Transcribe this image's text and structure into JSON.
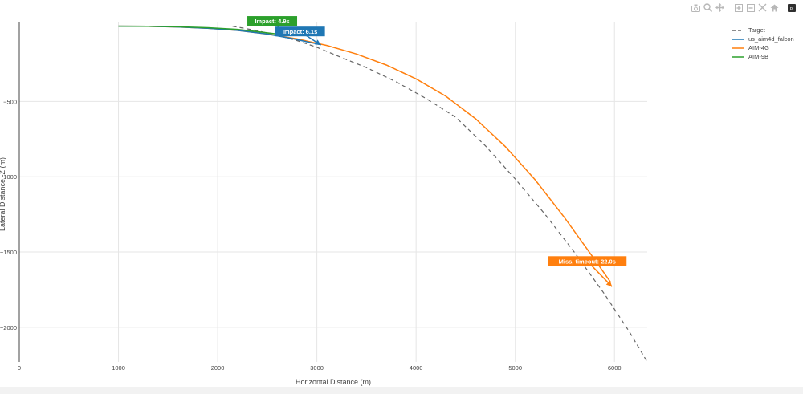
{
  "modebar": {
    "icons": [
      "camera-icon",
      "zoom-icon",
      "pan-icon",
      "zoom-in-icon",
      "zoom-out-icon",
      "autoscale-icon",
      "home-icon",
      "plotly-logo-icon"
    ],
    "logo_text": "pl"
  },
  "chart_data": {
    "type": "line",
    "xlabel": "Horizontal Distance (m)",
    "ylabel": "Lateral Distance -Z (m)",
    "xlim": [
      0,
      6330
    ],
    "ylim": [
      -2230,
      30
    ],
    "x_ticks": [
      0,
      1000,
      2000,
      3000,
      4000,
      5000,
      6000
    ],
    "x_tick_labels": [
      "0",
      "1000",
      "2000",
      "3000",
      "4000",
      "5000",
      "6000"
    ],
    "y_ticks": [
      -500,
      -1000,
      -1500,
      -2000
    ],
    "y_tick_labels": [
      "−500",
      "−1000",
      "−1500",
      "−2000"
    ],
    "grid": true,
    "legend_position": "top-right",
    "series": [
      {
        "name": "Target",
        "color": "#666666",
        "dash": "dash",
        "x": [
          2150,
          2400,
          2600,
          2800,
          3000,
          3200,
          3500,
          3800,
          4100,
          4400,
          4700,
          5000,
          5300,
          5600,
          5900,
          6150,
          6330
        ],
        "y": [
          0,
          -30,
          -60,
          -95,
          -140,
          -195,
          -275,
          -370,
          -480,
          -605,
          -795,
          -1015,
          -1250,
          -1505,
          -1780,
          -2030,
          -2230
        ]
      },
      {
        "name": "us_aim4d_falcon",
        "color": "#1f77b4",
        "dash": "solid",
        "x": [
          1000,
          1300,
          1600,
          1900,
          2200,
          2500,
          2750,
          2950,
          3040
        ],
        "y": [
          0,
          -1,
          -5,
          -14,
          -28,
          -52,
          -82,
          -110,
          -123
        ]
      },
      {
        "name": "AIM-4G",
        "color": "#ff7f0e",
        "dash": "solid",
        "x": [
          1000,
          1300,
          1600,
          1900,
          2200,
          2500,
          2800,
          3100,
          3400,
          3700,
          4000,
          4300,
          4600,
          4900,
          5200,
          5500,
          5800,
          5960
        ],
        "y": [
          0,
          -1,
          -5,
          -14,
          -28,
          -52,
          -84,
          -128,
          -185,
          -258,
          -350,
          -465,
          -615,
          -800,
          -1020,
          -1275,
          -1550,
          -1700
        ]
      },
      {
        "name": "AIM-9B",
        "color": "#2ca02c",
        "dash": "solid",
        "x": [
          1000,
          1300,
          1600,
          1900,
          2200,
          2450,
          2700
        ],
        "y": [
          0,
          -1,
          -4,
          -10,
          -21,
          -40,
          -60
        ]
      }
    ],
    "annotations": [
      {
        "text": "Impact: 4.9s",
        "color": "#2ca02c",
        "x": 2700,
        "y": -60,
        "label_x": 2550,
        "label_y": 35
      },
      {
        "text": "Impact: 6.1s",
        "color": "#1f77b4",
        "x": 3040,
        "y": -125,
        "label_x": 2830,
        "label_y": -35
      },
      {
        "text": "Miss, timeout: 22.0s",
        "color": "#ff7f0e",
        "x": 5975,
        "y": -1730,
        "label_x": 5725,
        "label_y": -1560
      }
    ]
  }
}
